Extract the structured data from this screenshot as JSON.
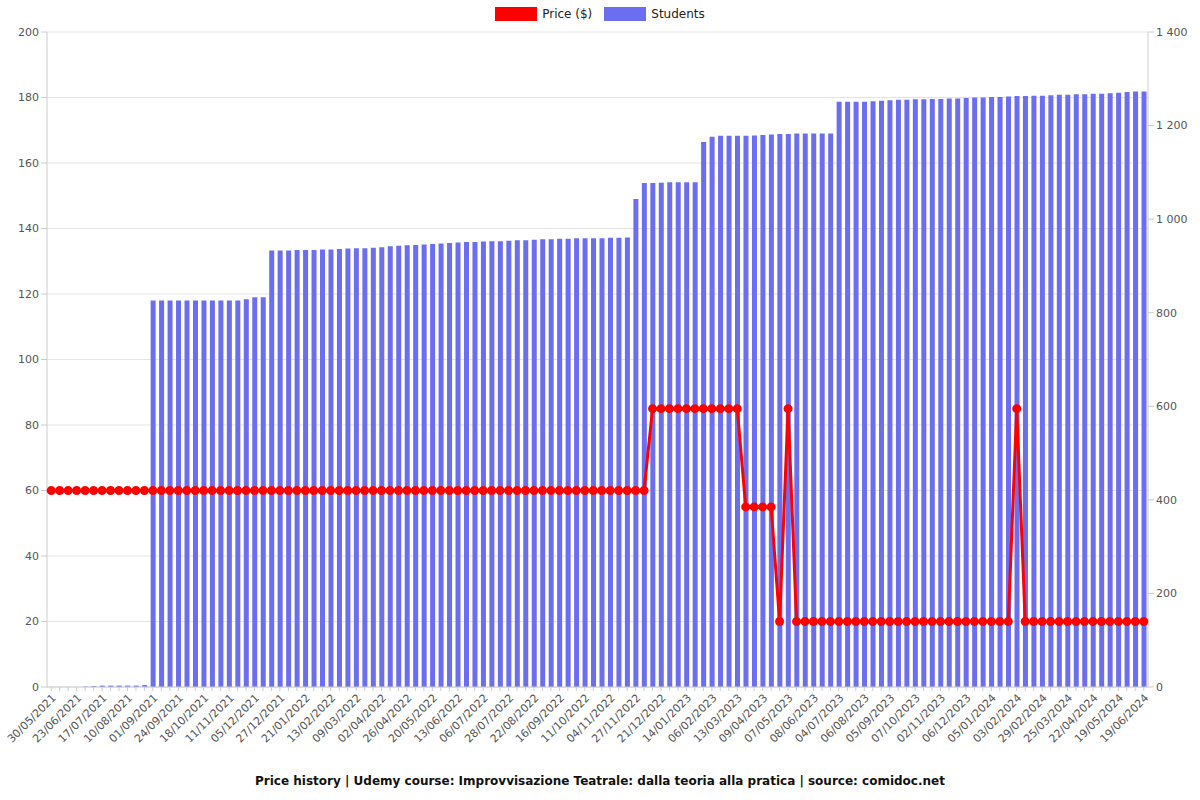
{
  "chart_data": {
    "type": "bar",
    "title": "Price history | Udemy course: Improvvisazione Teatrale: dalla teoria alla pratica | source: comidoc.net",
    "categories": [
      "30/05/2021",
      null,
      null,
      "23/06/2021",
      null,
      null,
      "17/07/2021",
      null,
      null,
      "10/08/2021",
      null,
      null,
      "01/09/2021",
      null,
      null,
      "24/09/2021",
      null,
      null,
      "18/10/2021",
      null,
      null,
      "11/11/2021",
      null,
      null,
      "05/12/2021",
      null,
      null,
      "27/12/2021",
      null,
      null,
      "21/01/2022",
      null,
      null,
      "13/02/2022",
      null,
      null,
      "09/03/2022",
      null,
      null,
      "02/04/2022",
      null,
      null,
      "26/04/2022",
      null,
      null,
      "20/05/2022",
      null,
      null,
      "13/06/2022",
      null,
      null,
      "06/07/2022",
      null,
      null,
      "28/07/2022",
      null,
      null,
      "22/08/2022",
      null,
      null,
      "16/09/2022",
      null,
      null,
      "11/10/2022",
      null,
      null,
      "04/11/2022",
      null,
      null,
      "27/11/2022",
      null,
      null,
      "21/12/2022",
      null,
      null,
      "14/01/2023",
      null,
      null,
      "06/02/2023",
      null,
      null,
      "13/03/2023",
      null,
      null,
      "09/04/2023",
      null,
      null,
      "07/05/2023",
      null,
      null,
      "08/06/2023",
      null,
      null,
      "04/07/2023",
      null,
      null,
      "06/08/2023",
      null,
      null,
      "05/09/2023",
      null,
      null,
      "07/10/2023",
      null,
      null,
      "02/11/2023",
      null,
      null,
      "06/12/2023",
      null,
      null,
      "05/01/2024",
      null,
      null,
      "03/02/2024",
      null,
      null,
      "29/02/2024",
      null,
      null,
      "25/03/2024",
      null,
      null,
      "22/04/2024",
      null,
      null,
      "19/05/2024",
      null,
      null,
      "19/06/2024"
    ],
    "series": [
      {
        "name": "Price ($)",
        "type": "line",
        "color": "#ff0000",
        "marker": "circle",
        "values": [
          60,
          60,
          60,
          60,
          60,
          60,
          60,
          60,
          60,
          60,
          60,
          60,
          60,
          60,
          60,
          60,
          60,
          60,
          60,
          60,
          60,
          60,
          60,
          60,
          60,
          60,
          60,
          60,
          60,
          60,
          60,
          60,
          60,
          60,
          60,
          60,
          60,
          60,
          60,
          60,
          60,
          60,
          60,
          60,
          60,
          60,
          60,
          60,
          60,
          60,
          60,
          60,
          60,
          60,
          60,
          60,
          60,
          60,
          60,
          60,
          60,
          60,
          60,
          60,
          60,
          60,
          60,
          60,
          60,
          60,
          60,
          85,
          85,
          85,
          85,
          85,
          85,
          85,
          85,
          85,
          85,
          85,
          55,
          55,
          55,
          55,
          20,
          85,
          20,
          20,
          20,
          20,
          20,
          20,
          20,
          20,
          20,
          20,
          20,
          20,
          20,
          20,
          20,
          20,
          20,
          20,
          20,
          20,
          20,
          20,
          20,
          20,
          20,
          20,
          85,
          20,
          20,
          20,
          20,
          20,
          20,
          20,
          20,
          20,
          20,
          20,
          20,
          20,
          20,
          20
        ]
      },
      {
        "name": "Students",
        "type": "bar",
        "color": "#6b6ef0",
        "axis": "y2",
        "values": [
          0,
          0,
          0,
          0,
          1,
          2,
          3,
          3,
          3,
          3,
          3,
          4,
          826,
          826,
          826,
          826,
          826,
          826,
          826,
          826,
          826,
          826,
          826,
          829,
          833,
          833,
          933,
          933,
          933,
          934,
          934,
          934,
          935,
          935,
          936,
          937,
          938,
          938,
          939,
          940,
          942,
          943,
          944,
          945,
          946,
          947,
          948,
          949,
          950,
          951,
          951,
          952,
          953,
          953,
          954,
          955,
          955,
          956,
          957,
          957,
          958,
          958,
          959,
          959,
          959,
          959,
          960,
          960,
          961,
          1043,
          1077,
          1077,
          1078,
          1079,
          1079,
          1079,
          1079,
          1165,
          1176,
          1178,
          1178,
          1178,
          1178,
          1179,
          1180,
          1181,
          1182,
          1182,
          1183,
          1183,
          1183,
          1183,
          1183,
          1251,
          1251,
          1251,
          1251,
          1252,
          1253,
          1254,
          1255,
          1255,
          1256,
          1256,
          1257,
          1257,
          1258,
          1258,
          1259,
          1260,
          1260,
          1261,
          1261,
          1262,
          1263,
          1263,
          1264,
          1264,
          1265,
          1266,
          1266,
          1267,
          1267,
          1268,
          1268,
          1269,
          1270,
          1272,
          1273,
          1273
        ]
      }
    ],
    "ylim": [
      0,
      200
    ],
    "yticks": [
      0,
      20,
      40,
      60,
      80,
      100,
      120,
      140,
      160,
      180,
      200
    ],
    "y2lim": [
      0,
      1400
    ],
    "y2ticks": [
      0,
      200,
      400,
      600,
      800,
      {
        "value": 1000,
        "label": "1 000"
      },
      {
        "value": 1200,
        "label": "1 200"
      },
      {
        "value": 1400,
        "label": "1 400"
      }
    ],
    "grid": true,
    "legend": "top"
  }
}
